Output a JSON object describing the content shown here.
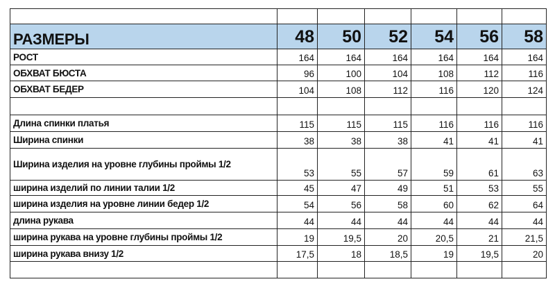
{
  "header": {
    "label": "РАЗМЕРЫ",
    "sizes": [
      "48",
      "50",
      "52",
      "54",
      "56",
      "58"
    ],
    "color": "#b9d5ec"
  },
  "rows": [
    {
      "label": "РОСТ",
      "values": [
        "164",
        "164",
        "164",
        "164",
        "164",
        "164"
      ]
    },
    {
      "label": "ОБХВАТ БЮСТА",
      "values": [
        "96",
        "100",
        "104",
        "108",
        "112",
        "116"
      ]
    },
    {
      "label": "ОБХВАТ БЕДЕР",
      "values": [
        "104",
        "108",
        "112",
        "116",
        "120",
        "124"
      ]
    },
    {
      "label": "",
      "values": [
        "",
        "",
        "",
        "",
        "",
        ""
      ]
    },
    {
      "label": "Длина спинки платья",
      "values": [
        "115",
        "115",
        "115",
        "116",
        "116",
        "116"
      ]
    },
    {
      "label": "Ширина спинки",
      "values": [
        "38",
        "38",
        "38",
        "41",
        "41",
        "41"
      ]
    },
    {
      "label": "Ширина изделия на уровне глубины проймы 1/2",
      "values": [
        "53",
        "55",
        "57",
        "59",
        "61",
        "63"
      ]
    },
    {
      "label": "ширина изделий по линии талии 1/2",
      "values": [
        "45",
        "47",
        "49",
        "51",
        "53",
        "55"
      ]
    },
    {
      "label": "ширина изделия на уровне линии бедер 1/2",
      "values": [
        "54",
        "56",
        "58",
        "60",
        "62",
        "64"
      ]
    },
    {
      "label": "длина рукава",
      "values": [
        "44",
        "44",
        "44",
        "44",
        "44",
        "44"
      ]
    },
    {
      "label": "ширина рукава на уровне глубины проймы 1/2",
      "values": [
        "19",
        "19,5",
        "20",
        "20,5",
        "21",
        "21,5"
      ]
    },
    {
      "label": "ширина рукава внизу 1/2",
      "values": [
        "17,5",
        "18",
        "18,5",
        "19",
        "19,5",
        "20"
      ]
    },
    {
      "label": "",
      "values": [
        "",
        "",
        "",
        "",
        "",
        ""
      ]
    }
  ]
}
